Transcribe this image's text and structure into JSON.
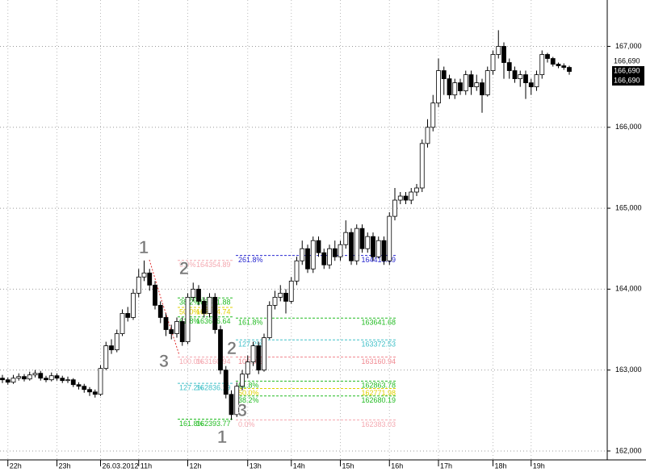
{
  "chart_data": {
    "type": "candlestick",
    "categories": [
      null,
      "22h",
      null,
      null,
      null,
      null,
      null,
      null,
      null,
      null,
      "23h",
      null,
      null,
      null,
      null,
      null,
      null,
      null,
      "26.03.2012",
      null,
      null,
      null,
      null,
      null,
      null,
      "11h",
      null,
      null,
      null,
      null,
      null,
      null,
      null,
      null,
      "12h",
      null,
      null,
      null,
      null,
      null,
      null,
      null,
      null,
      null,
      null,
      "13h",
      null,
      null,
      null,
      null,
      null,
      null,
      null,
      "14h",
      null,
      null,
      null,
      null,
      null,
      null,
      null,
      null,
      "15h",
      null,
      null,
      null,
      null,
      null,
      null,
      null,
      null,
      "16h",
      null,
      null,
      null,
      null,
      null,
      null,
      null,
      null,
      "17h",
      null,
      null,
      null,
      null,
      null,
      null,
      null,
      null,
      null,
      "18h",
      null,
      null,
      null,
      null,
      null,
      null,
      "19h",
      null,
      null,
      null,
      null,
      null,
      null,
      null
    ],
    "open": [
      162900,
      162880,
      162850,
      162900,
      162920,
      162890,
      162940,
      162960,
      162900,
      162880,
      162930,
      162900,
      162870,
      162880,
      162820,
      162800,
      162760,
      162730,
      162700,
      163020,
      163300,
      163250,
      163450,
      163700,
      163650,
      163950,
      164150,
      164200,
      164050,
      163800,
      163650,
      163500,
      163450,
      163600,
      163350,
      163900,
      164000,
      163850,
      163700,
      163900,
      163500,
      163000,
      162700,
      162450,
      162800,
      162950,
      163100,
      163300,
      163000,
      163400,
      163800,
      163900,
      163950,
      163850,
      164100,
      164350,
      164500,
      164250,
      164600,
      164450,
      164300,
      164500,
      164400,
      164550,
      164700,
      164350,
      164750,
      164500,
      164650,
      164400,
      164600,
      164350,
      164900,
      165100,
      165150,
      165100,
      165200,
      165250,
      165800,
      166000,
      166300,
      166700,
      166600,
      166400,
      166550,
      166450,
      166650,
      166500,
      166550,
      166400,
      166700,
      166900,
      167000,
      166800,
      166700,
      166600,
      166650,
      166550,
      166500,
      166650,
      166900,
      166850,
      166780,
      166760,
      166740
    ],
    "high": [
      162940,
      162910,
      162940,
      162960,
      162950,
      162980,
      163000,
      162990,
      162930,
      162970,
      162960,
      162930,
      162920,
      162900,
      162850,
      162830,
      162790,
      162760,
      163060,
      163350,
      163380,
      163500,
      163750,
      163780,
      164000,
      164250,
      164354,
      164250,
      164100,
      163850,
      163700,
      163560,
      163650,
      163650,
      163950,
      164080,
      164050,
      163900,
      163950,
      163950,
      163550,
      163050,
      162750,
      162850,
      163000,
      163180,
      163350,
      163350,
      163450,
      163850,
      163980,
      164050,
      164000,
      164150,
      164400,
      164600,
      164550,
      164650,
      164650,
      164500,
      164550,
      164600,
      164600,
      164850,
      164750,
      164800,
      164800,
      164700,
      164700,
      164650,
      164650,
      164950,
      165250,
      165200,
      165200,
      165250,
      165300,
      165850,
      166100,
      166400,
      166850,
      166750,
      166650,
      166600,
      166600,
      166700,
      166700,
      166650,
      166600,
      166750,
      166950,
      167200,
      167050,
      166850,
      166750,
      166700,
      166700,
      166600,
      166700,
      166950,
      166920,
      166870,
      166800,
      166790,
      166760
    ],
    "low": [
      162840,
      162820,
      162830,
      162870,
      162860,
      162870,
      162910,
      162870,
      162850,
      162860,
      162870,
      162840,
      162840,
      162790,
      162760,
      162720,
      162680,
      162660,
      162680,
      163000,
      163200,
      163220,
      163420,
      163600,
      163620,
      163900,
      164100,
      163980,
      163750,
      163580,
      163420,
      163380,
      163400,
      163300,
      163320,
      163850,
      163800,
      163650,
      163650,
      163450,
      162950,
      162650,
      162383,
      162420,
      162750,
      162900,
      163050,
      162950,
      162980,
      163380,
      163750,
      163850,
      163700,
      163820,
      164050,
      164300,
      164200,
      164200,
      164400,
      164250,
      164250,
      164350,
      164350,
      164500,
      164300,
      164300,
      164450,
      164450,
      164350,
      164380,
      164300,
      164300,
      164850,
      165050,
      165050,
      165050,
      165150,
      165200,
      165750,
      165950,
      166250,
      166400,
      166350,
      166350,
      166400,
      166400,
      166400,
      166450,
      166180,
      166380,
      166650,
      166850,
      166600,
      166600,
      166550,
      166500,
      166350,
      166400,
      166450,
      166600,
      166800,
      166750,
      166730,
      166710,
      166650
    ],
    "close": [
      162880,
      162850,
      162900,
      162920,
      162890,
      162940,
      162960,
      162900,
      162880,
      162930,
      162900,
      162870,
      162880,
      162820,
      162800,
      162760,
      162730,
      162700,
      163020,
      163300,
      163250,
      163450,
      163700,
      163650,
      163950,
      164150,
      164200,
      164050,
      163800,
      163650,
      163500,
      163450,
      163600,
      163350,
      163900,
      164000,
      163850,
      163700,
      163900,
      163500,
      163000,
      162700,
      162450,
      162800,
      162950,
      163100,
      163300,
      163000,
      163400,
      163800,
      163900,
      163950,
      163850,
      164100,
      164350,
      164500,
      164250,
      164600,
      164450,
      164300,
      164500,
      164400,
      164550,
      164700,
      164350,
      164750,
      164500,
      164650,
      164400,
      164600,
      164350,
      164900,
      165100,
      165150,
      165100,
      165200,
      165250,
      165800,
      166000,
      166300,
      166700,
      166600,
      166400,
      166550,
      166450,
      166650,
      166500,
      166550,
      166400,
      166700,
      166900,
      167000,
      166800,
      166700,
      166600,
      166650,
      166550,
      166500,
      166650,
      166900,
      166850,
      166780,
      166760,
      166740,
      166690
    ],
    "up_color": "#ffffff",
    "down_color": "#000000",
    "ylim": [
      161890,
      167573
    ],
    "yticks": [
      {
        "value": 162000,
        "label": "162,000"
      },
      {
        "value": 163000,
        "label": "163,000"
      },
      {
        "value": 164000,
        "label": "164,000"
      },
      {
        "value": 165000,
        "label": "165,000"
      },
      {
        "value": 166000,
        "label": "166,000"
      },
      {
        "value": 167000,
        "label": "167,000"
      }
    ],
    "grid": true,
    "last_price_labels": [
      "166,690",
      "166,690",
      "166,690"
    ],
    "fib_sets": [
      {
        "levels": [
          {
            "pct": "0.0%",
            "price": 164354.89,
            "color": "#f4a8b0"
          },
          {
            "pct": "38.2%",
            "price": 163891.88,
            "color": "#22bb22"
          },
          {
            "pct": "50.0%",
            "price": 163774.74,
            "color": "#e0d000"
          },
          {
            "pct": "61.8%",
            "price": 163656.64,
            "color": "#22bb22"
          },
          {
            "pct": "100.0%",
            "price": 163160.94,
            "color": "#f4a8b0"
          },
          {
            "pct": "127.2%",
            "price": 162836.19,
            "color": "#40c0c8"
          },
          {
            "pct": "161.8%",
            "price": 162393.77,
            "color": "#22bb22"
          }
        ]
      },
      {
        "levels": [
          {
            "pct": "261.8%",
            "price": 164416.69,
            "color": "#2a2ad0"
          },
          {
            "pct": "161.8%",
            "price": 163641.68,
            "color": "#22bb22"
          },
          {
            "pct": "127.2%",
            "price": 163372.53,
            "color": "#40c0c8"
          },
          {
            "pct": "100.0%",
            "price": 163160.94,
            "color": "#f08890"
          },
          {
            "pct": "61.8%",
            "price": 162863.78,
            "color": "#22bb22"
          },
          {
            "pct": "50.0%",
            "price": 162771.98,
            "color": "#e0d000"
          },
          {
            "pct": "38.2%",
            "price": 162680.19,
            "color": "#22bb22"
          },
          {
            "pct": "0.0%",
            "price": 162383.03,
            "color": "#f4a8b0"
          }
        ]
      }
    ],
    "wave_labels": [
      "1",
      "2",
      "3",
      "2",
      "3",
      "1"
    ]
  }
}
